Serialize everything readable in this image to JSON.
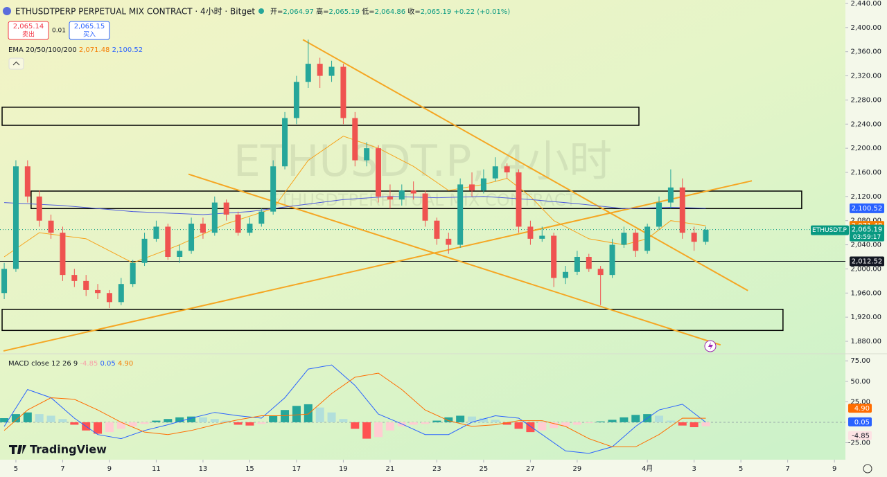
{
  "header": {
    "title": "ETHUSDTPERP PERPETUAL MIX CONTRACT · 4小时 · Bitget",
    "ohlc": [
      {
        "label": "开=",
        "value": "2,064.97"
      },
      {
        "label": "高=",
        "value": "2,065.19"
      },
      {
        "label": "低=",
        "value": "2,064.86"
      },
      {
        "label": "收=",
        "value": "2,065.19"
      }
    ],
    "change": "+0.22 (+0.01%)",
    "sell": {
      "price": "2,065.14",
      "label": "卖出"
    },
    "spread": "0.01",
    "buy": {
      "price": "2,065.15",
      "label": "买入"
    },
    "watermark": [
      "ETHUSDT.P, 4小时",
      "ETHUSDTPERPETUAL MIX CONTRACT"
    ],
    "logo": "TradingView"
  },
  "chart_data": [
    {
      "type": "candlestick",
      "up_color": "#26a69a",
      "down_color": "#ef5350",
      "xlim": [
        -0.68,
        35.47
      ],
      "ylim": [
        1860.5,
        2445.7
      ],
      "xticks": [
        {
          "value": 0,
          "label": "5"
        },
        {
          "value": 2,
          "label": "7"
        },
        {
          "value": 4,
          "label": "9"
        },
        {
          "value": 6,
          "label": "11"
        },
        {
          "value": 8,
          "label": "13"
        },
        {
          "value": 10,
          "label": "15"
        },
        {
          "value": 12,
          "label": "17"
        },
        {
          "value": 14,
          "label": "19"
        },
        {
          "value": 16,
          "label": "21"
        },
        {
          "value": 18,
          "label": "23"
        },
        {
          "value": 20,
          "label": "25"
        },
        {
          "value": 22,
          "label": "27"
        },
        {
          "value": 24,
          "label": "29"
        },
        {
          "value": 27,
          "label": "4月"
        },
        {
          "value": 29,
          "label": "3"
        },
        {
          "value": 31,
          "label": "5"
        },
        {
          "value": 33,
          "label": "7"
        },
        {
          "value": 35,
          "label": "9"
        }
      ],
      "yticks": [
        {
          "value": 1880,
          "label": "1,880.00"
        },
        {
          "value": 1920,
          "label": "1,920.00"
        },
        {
          "value": 1960,
          "label": "1,960.00"
        },
        {
          "value": 2000,
          "label": "2,000.00"
        },
        {
          "value": 2040,
          "label": "2,040.00"
        },
        {
          "value": 2080,
          "label": "2,080.00"
        },
        {
          "value": 2120,
          "label": "2,120.00"
        },
        {
          "value": 2160,
          "label": "2,160.00"
        },
        {
          "value": 2200,
          "label": "2,200.00"
        },
        {
          "value": 2240,
          "label": "2,240.00"
        },
        {
          "value": 2280,
          "label": "2,280.00"
        },
        {
          "value": 2320,
          "label": "2,320.00"
        },
        {
          "value": 2360,
          "label": "2,360.00"
        },
        {
          "value": 2400,
          "label": "2,400.00"
        },
        {
          "value": 2440,
          "label": "2,440.00"
        }
      ],
      "x": [
        -0.5,
        0,
        0.5,
        1,
        1.5,
        2,
        2.5,
        3,
        3.5,
        4,
        4.5,
        5,
        5.5,
        6,
        6.5,
        7,
        7.5,
        8,
        8.5,
        9,
        9.5,
        10,
        10.5,
        11,
        11.5,
        12,
        12.5,
        13,
        13.5,
        14,
        14.5,
        15,
        15.5,
        16,
        16.5,
        17,
        17.5,
        18,
        18.5,
        19,
        19.5,
        20,
        20.5,
        21,
        21.5,
        22,
        22.5,
        23,
        23.5,
        24,
        24.5,
        25,
        25.5,
        26,
        26.5,
        27,
        27.5,
        28,
        28.5,
        29,
        29.5
      ],
      "open": [
        1960,
        2000,
        2170,
        2120,
        2080,
        2060,
        1990,
        1980,
        1965,
        1960,
        1945,
        1975,
        2010,
        2050,
        2070,
        2020,
        2030,
        2075,
        2060,
        2110,
        2090,
        2060,
        2075,
        2095,
        2170,
        2250,
        2310,
        2340,
        2320,
        2335,
        2250,
        2180,
        2200,
        2120,
        2115,
        2130,
        2125,
        2080,
        2050,
        2040,
        2140,
        2130,
        2150,
        2170,
        2160,
        2070,
        2050,
        2055,
        1985,
        1995,
        2020,
        2000,
        1990,
        2040,
        2060,
        2030,
        2070,
        2110,
        2135,
        2060,
        2045
      ],
      "high": [
        2010,
        2180,
        2180,
        2130,
        2090,
        2070,
        2000,
        1990,
        1975,
        1965,
        1985,
        2015,
        2060,
        2080,
        2075,
        2040,
        2085,
        2085,
        2120,
        2115,
        2095,
        2085,
        2100,
        2180,
        2260,
        2320,
        2380,
        2350,
        2345,
        2340,
        2260,
        2210,
        2205,
        2140,
        2140,
        2145,
        2130,
        2085,
        2060,
        2150,
        2160,
        2165,
        2185,
        2175,
        2165,
        2080,
        2070,
        2060,
        2005,
        2030,
        2025,
        2005,
        2050,
        2070,
        2065,
        2075,
        2120,
        2165,
        2150,
        2070,
        2070
      ],
      "low": [
        1950,
        1995,
        2110,
        2070,
        2050,
        1980,
        1970,
        1955,
        1950,
        1935,
        1940,
        1970,
        2005,
        2045,
        2015,
        2010,
        2025,
        2050,
        2055,
        2080,
        2055,
        2055,
        2070,
        2090,
        2165,
        2240,
        2300,
        2300,
        2310,
        2240,
        2170,
        2170,
        2110,
        2100,
        2105,
        2115,
        2070,
        2040,
        2025,
        2035,
        2120,
        2125,
        2145,
        2150,
        2060,
        2040,
        2045,
        1970,
        1975,
        1990,
        1995,
        1940,
        1985,
        2035,
        2020,
        2025,
        2065,
        2100,
        2050,
        2030,
        2040
      ],
      "close": [
        2000,
        2170,
        2120,
        2080,
        2060,
        1990,
        1980,
        1965,
        1960,
        1945,
        1975,
        2010,
        2050,
        2070,
        2020,
        2030,
        2075,
        2060,
        2110,
        2090,
        2060,
        2075,
        2095,
        2170,
        2250,
        2310,
        2340,
        2320,
        2335,
        2250,
        2180,
        2200,
        2120,
        2115,
        2130,
        2125,
        2080,
        2050,
        2040,
        2140,
        2130,
        2150,
        2170,
        2160,
        2070,
        2050,
        2055,
        1985,
        1995,
        2020,
        2000,
        1990,
        2040,
        2060,
        2030,
        2070,
        2110,
        2135,
        2060,
        2045,
        2065
      ],
      "ema": {
        "label": "EMA 20/50/100/200",
        "lines": [
          {
            "color": "#f7a21b",
            "value_label": "2,071.48",
            "x": [
              -0.5,
              1,
              3,
              5,
              7,
              9,
              11,
              12.5,
              14,
              15.5,
              17,
              18.5,
              20,
              21,
              22,
              23,
              24.5,
              26,
              27,
              28,
              29.5
            ],
            "values": [
              2020,
              2060,
              2050,
              2010,
              2040,
              2075,
              2100,
              2180,
              2220,
              2200,
              2170,
              2130,
              2140,
              2150,
              2120,
              2080,
              2050,
              2040,
              2050,
              2080,
              2071.48
            ]
          },
          {
            "color": "#4e5bdc",
            "value_label": "2,100.52",
            "x": [
              -0.5,
              2,
              5,
              8,
              10,
              12,
              14,
              16,
              18,
              20,
              22,
              24,
              26,
              28,
              29.5
            ],
            "values": [
              2110,
              2105,
              2095,
              2090,
              2095,
              2105,
              2115,
              2120,
              2118,
              2120,
              2115,
              2108,
              2100,
              2102,
              2100.52
            ]
          }
        ]
      },
      "boxes": [
        {
          "x": [
            -0.59,
            26.64
          ],
          "y": [
            2238,
            2268
          ]
        },
        {
          "x": [
            0.65,
            33.6
          ],
          "y": [
            2100,
            2129
          ]
        },
        {
          "x": [
            -0.59,
            32.8
          ],
          "y": [
            1898,
            1933
          ]
        }
      ],
      "trendlines": [
        {
          "color": "#f5a623",
          "x": [
            12.27,
            31.3
          ],
          "y": [
            2380,
            1964
          ]
        },
        {
          "color": "#f5a623",
          "x": [
            7.38,
            30.13
          ],
          "y": [
            2157,
            1874
          ]
        },
        {
          "color": "#f5a623",
          "x": [
            -0.53,
            31.47
          ],
          "y": [
            1864,
            2146
          ]
        }
      ],
      "price_badges": [
        {
          "value": 2100.52,
          "label": "2,100.52",
          "color": "#2962ff"
        },
        {
          "value": 2071.48,
          "label": "2,071.48",
          "color": "#f57c00"
        },
        {
          "value": 2012.52,
          "label": "2,012.52",
          "color": "#131722",
          "line": true
        }
      ],
      "last_price": {
        "symbol": "ETHUSDT.P",
        "value": 2065.19,
        "label": "2,065.19",
        "countdown": "03:59:17",
        "color": "#089981"
      }
    },
    {
      "type": "macd",
      "label": "MACD close 12 26 9",
      "ylim": [
        -45.7,
        82.8
      ],
      "yticks": [
        {
          "value": 75,
          "label": "75.00"
        },
        {
          "value": 50,
          "label": "50.00"
        },
        {
          "value": 25,
          "label": "25.00"
        },
        {
          "value": -25,
          "label": "-25.00"
        }
      ],
      "histogram": {
        "value_label": "-4.85",
        "color": "#f7525f",
        "x": [
          -0.5,
          0,
          0.5,
          1,
          1.5,
          2,
          2.5,
          3,
          3.5,
          4,
          4.5,
          5,
          5.5,
          6,
          6.5,
          7,
          7.5,
          8,
          8.5,
          9,
          9.5,
          10,
          10.5,
          11,
          11.5,
          12,
          12.5,
          13,
          13.5,
          14,
          14.5,
          15,
          15.5,
          16,
          16.5,
          17,
          17.5,
          18,
          18.5,
          19,
          19.5,
          20,
          20.5,
          21,
          21.5,
          22,
          22.5,
          23,
          23.5,
          24,
          24.5,
          25,
          25.5,
          26,
          26.5,
          27,
          27.5,
          28,
          28.5,
          29,
          29.5
        ],
        "values": [
          5,
          10,
          12,
          10,
          8,
          4,
          -3,
          -10,
          -14,
          -12,
          -8,
          -5,
          -2,
          2,
          4,
          6,
          7,
          6,
          4,
          2,
          -3,
          -4,
          -2,
          8,
          15,
          20,
          22,
          18,
          12,
          4,
          -8,
          -20,
          -18,
          -10,
          -5,
          -3,
          -2,
          2,
          6,
          8,
          7,
          5,
          3,
          -3,
          -8,
          -12,
          -10,
          -7,
          -5,
          -3,
          -1,
          1,
          3,
          6,
          9,
          10,
          8,
          2,
          -4,
          -6,
          -4.85
        ]
      },
      "macd": {
        "color": "#2962ff",
        "value_label": "0.05",
        "x": [
          -0.5,
          0.5,
          1.5,
          2.5,
          3.5,
          4.5,
          5.5,
          6.5,
          7.5,
          8.5,
          9.5,
          10.5,
          11.5,
          12.5,
          13.5,
          14.5,
          15.5,
          16.5,
          17.5,
          18.5,
          19.5,
          20.5,
          21.5,
          22.5,
          23.5,
          24.5,
          25.5,
          26.5,
          27.5,
          28.5,
          29.5
        ],
        "values": [
          -5,
          40,
          30,
          5,
          -15,
          -20,
          -10,
          -3,
          5,
          12,
          8,
          5,
          30,
          65,
          70,
          45,
          10,
          -2,
          -15,
          -15,
          0,
          8,
          5,
          -15,
          -35,
          -38,
          -30,
          -5,
          15,
          22,
          0.05
        ]
      },
      "signal": {
        "color": "#ff6d00",
        "value_label": "4.90",
        "x": [
          -0.5,
          0.5,
          1.5,
          2.5,
          3.5,
          4.5,
          5.5,
          6.5,
          7.5,
          8.5,
          9.5,
          10.5,
          11.5,
          12.5,
          13.5,
          14.5,
          15.5,
          16.5,
          17.5,
          18.5,
          19.5,
          20.5,
          21.5,
          22.5,
          23.5,
          24.5,
          25.5,
          26.5,
          27.5,
          28.5,
          29.5
        ],
        "values": [
          -10,
          15,
          30,
          28,
          15,
          0,
          -12,
          -15,
          -10,
          -3,
          3,
          8,
          8,
          10,
          35,
          55,
          60,
          40,
          15,
          2,
          -5,
          -3,
          2,
          2,
          -5,
          -20,
          -30,
          -30,
          -15,
          5,
          4.9
        ]
      }
    }
  ]
}
